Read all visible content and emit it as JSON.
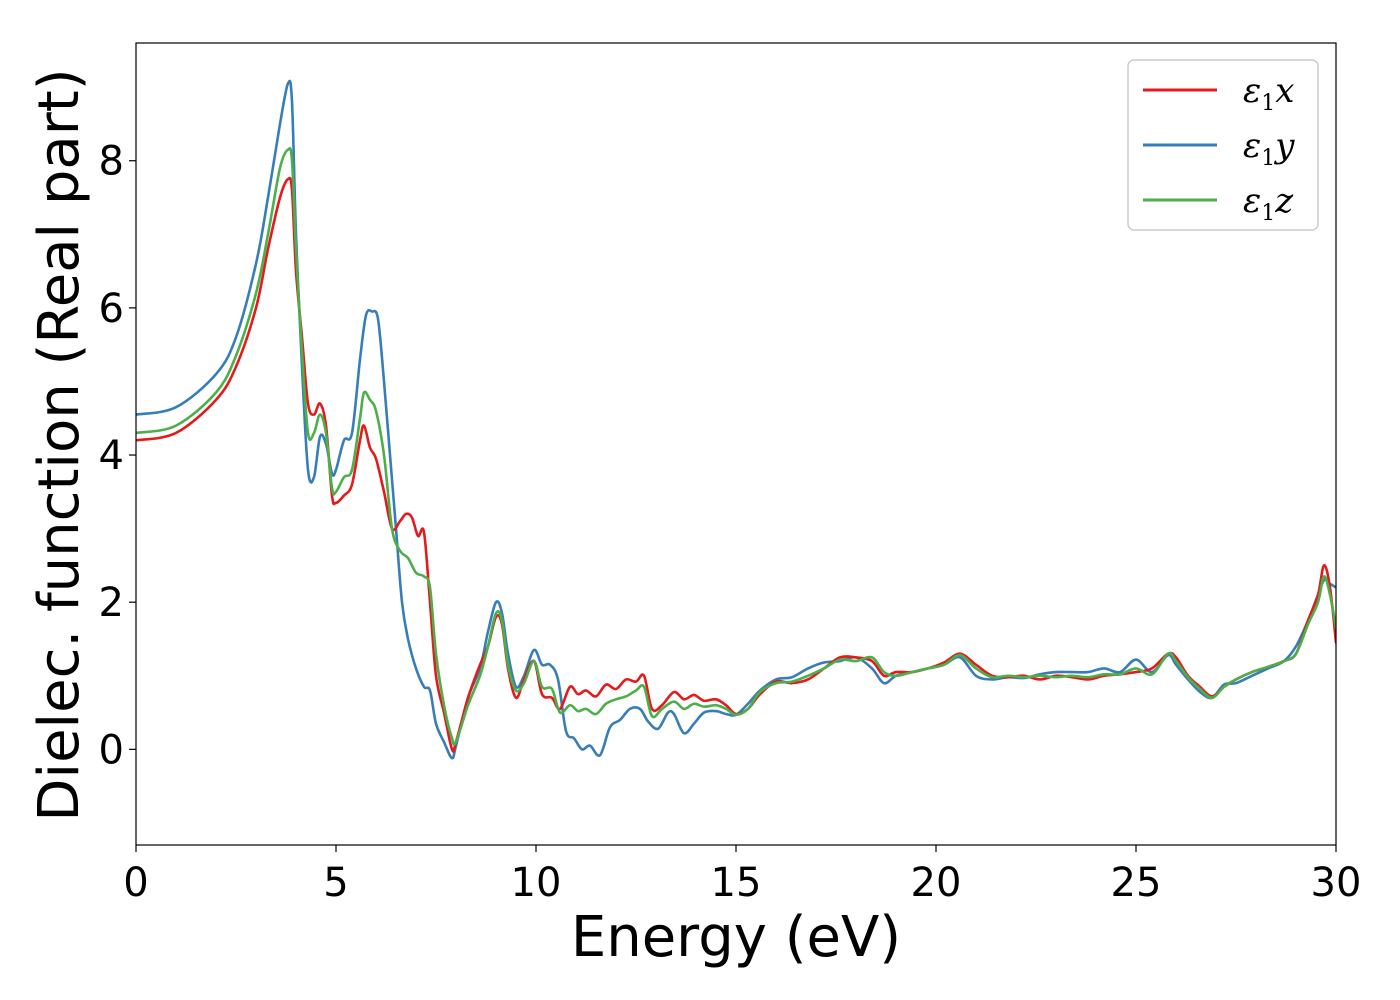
{
  "chart_data": {
    "type": "line",
    "title": "",
    "xlabel": "Energy (eV)",
    "ylabel": "Dielec. function (Real part)",
    "xlim": [
      0,
      30
    ],
    "ylim": [
      -1.3,
      9.6
    ],
    "xticks": [
      0,
      5,
      10,
      15,
      20,
      25,
      30
    ],
    "yticks": [
      0,
      2,
      4,
      6,
      8
    ],
    "grid": false,
    "legend_position": "top-right",
    "series": [
      {
        "name": "ε1x",
        "legend_symbol": "ε",
        "legend_sub": "1",
        "legend_var": "x",
        "color": "#e41a1c",
        "x": [
          0,
          1,
          2,
          2.5,
          3,
          3.3,
          3.6,
          3.8,
          3.9,
          4.0,
          4.15,
          4.3,
          4.45,
          4.6,
          4.75,
          4.9,
          5.0,
          5.2,
          5.4,
          5.6,
          5.7,
          5.85,
          6.0,
          6.2,
          6.4,
          6.6,
          6.75,
          6.9,
          7.05,
          7.2,
          7.35,
          7.5,
          7.7,
          7.9,
          8.0,
          8.3,
          8.6,
          8.8,
          9.0,
          9.15,
          9.3,
          9.5,
          9.7,
          9.95,
          10.15,
          10.4,
          10.6,
          10.85,
          11.05,
          11.25,
          11.5,
          11.75,
          12.0,
          12.25,
          12.5,
          12.7,
          12.9,
          13.15,
          13.45,
          13.7,
          13.95,
          14.2,
          14.5,
          14.75,
          15.0,
          15.3,
          15.6,
          16.0,
          16.4,
          16.8,
          17.2,
          17.6,
          18.0,
          18.4,
          18.7,
          19.0,
          19.4,
          19.8,
          20.2,
          20.6,
          21.0,
          21.4,
          21.8,
          22.2,
          22.6,
          23.0,
          23.4,
          23.8,
          24.2,
          24.6,
          25.0,
          25.4,
          25.8,
          26.0,
          26.3,
          26.6,
          26.9,
          27.2,
          27.5,
          27.9,
          28.3,
          28.7,
          29.0,
          29.3,
          29.55,
          29.7,
          29.85,
          30.0
        ],
        "values": [
          4.2,
          4.3,
          4.75,
          5.2,
          6.0,
          6.8,
          7.5,
          7.75,
          7.6,
          6.5,
          5.6,
          4.7,
          4.55,
          4.7,
          4.4,
          3.45,
          3.35,
          3.45,
          3.6,
          4.2,
          4.4,
          4.1,
          3.95,
          3.5,
          3.0,
          3.1,
          3.2,
          3.15,
          2.9,
          2.95,
          2.0,
          1.0,
          0.5,
          0.0,
          0.1,
          0.7,
          1.15,
          1.4,
          1.8,
          1.7,
          1.1,
          0.7,
          0.95,
          1.2,
          0.75,
          0.7,
          0.55,
          0.85,
          0.75,
          0.8,
          0.72,
          0.88,
          0.82,
          0.95,
          0.92,
          1.0,
          0.55,
          0.6,
          0.78,
          0.68,
          0.74,
          0.66,
          0.68,
          0.6,
          0.48,
          0.55,
          0.75,
          0.92,
          0.9,
          0.95,
          1.1,
          1.25,
          1.25,
          1.2,
          1.0,
          1.05,
          1.05,
          1.1,
          1.18,
          1.3,
          1.15,
          1.0,
          0.98,
          1.0,
          0.95,
          1.0,
          0.98,
          0.95,
          1.0,
          1.02,
          1.05,
          1.1,
          1.3,
          1.25,
          1.0,
          0.85,
          0.72,
          0.85,
          0.95,
          1.05,
          1.12,
          1.2,
          1.3,
          1.75,
          2.1,
          2.5,
          2.2,
          1.45
        ]
      },
      {
        "name": "ε1y",
        "legend_symbol": "ε",
        "legend_sub": "1",
        "legend_var": "y",
        "color": "#377eb8",
        "x": [
          0,
          1,
          2,
          2.5,
          3,
          3.3,
          3.6,
          3.8,
          3.9,
          4.0,
          4.15,
          4.3,
          4.45,
          4.6,
          4.75,
          4.9,
          5.0,
          5.2,
          5.4,
          5.6,
          5.75,
          5.9,
          6.05,
          6.2,
          6.35,
          6.5,
          6.65,
          6.8,
          7.0,
          7.2,
          7.35,
          7.5,
          7.7,
          7.9,
          8.0,
          8.3,
          8.6,
          8.8,
          9.0,
          9.15,
          9.3,
          9.5,
          9.7,
          9.95,
          10.15,
          10.35,
          10.55,
          10.75,
          10.95,
          11.15,
          11.35,
          11.6,
          11.85,
          12.1,
          12.35,
          12.6,
          12.8,
          13.05,
          13.3,
          13.45,
          13.7,
          13.95,
          14.2,
          14.5,
          14.75,
          15.0,
          15.3,
          15.6,
          16.0,
          16.4,
          16.8,
          17.2,
          17.6,
          18.0,
          18.4,
          18.7,
          19.0,
          19.4,
          19.8,
          20.2,
          20.6,
          21.0,
          21.4,
          21.8,
          22.2,
          22.6,
          23.0,
          23.4,
          23.8,
          24.2,
          24.6,
          25.0,
          25.4,
          25.8,
          26.0,
          26.3,
          26.6,
          26.9,
          27.2,
          27.5,
          27.9,
          28.3,
          28.7,
          29.0,
          29.3,
          29.55,
          29.7,
          29.85,
          30.0
        ],
        "values": [
          4.55,
          4.65,
          5.1,
          5.6,
          6.6,
          7.5,
          8.5,
          9.05,
          8.8,
          7.0,
          5.2,
          3.8,
          3.7,
          4.25,
          4.15,
          3.75,
          3.8,
          4.2,
          4.3,
          5.3,
          5.9,
          5.95,
          5.85,
          5.0,
          4.0,
          3.0,
          2.0,
          1.5,
          1.1,
          0.85,
          0.8,
          0.35,
          0.1,
          -0.12,
          0.05,
          0.7,
          1.1,
          1.6,
          2.0,
          1.85,
          1.3,
          0.85,
          1.0,
          1.35,
          1.15,
          1.15,
          0.95,
          0.25,
          0.15,
          0.0,
          0.05,
          -0.08,
          0.3,
          0.4,
          0.55,
          0.55,
          0.38,
          0.28,
          0.5,
          0.48,
          0.22,
          0.35,
          0.5,
          0.52,
          0.48,
          0.47,
          0.62,
          0.8,
          0.95,
          0.98,
          1.1,
          1.18,
          1.2,
          1.25,
          1.1,
          0.9,
          1.0,
          1.05,
          1.1,
          1.15,
          1.25,
          1.0,
          0.95,
          0.98,
          0.97,
          1.02,
          1.05,
          1.05,
          1.05,
          1.1,
          1.05,
          1.22,
          1.05,
          1.28,
          1.15,
          0.95,
          0.78,
          0.7,
          0.88,
          0.9,
          1.0,
          1.1,
          1.2,
          1.4,
          1.75,
          2.1,
          2.3,
          2.25,
          2.2
        ]
      },
      {
        "name": "ε1z",
        "legend_symbol": "ε",
        "legend_sub": "1",
        "legend_var": "z",
        "color": "#4daf4a",
        "x": [
          0,
          1,
          2,
          2.5,
          3,
          3.3,
          3.6,
          3.8,
          3.9,
          4.0,
          4.15,
          4.3,
          4.45,
          4.6,
          4.75,
          4.9,
          5.0,
          5.2,
          5.4,
          5.6,
          5.7,
          5.85,
          6.0,
          6.2,
          6.4,
          6.6,
          6.8,
          7.0,
          7.2,
          7.35,
          7.5,
          7.7,
          7.9,
          8.0,
          8.3,
          8.6,
          8.8,
          9.0,
          9.15,
          9.3,
          9.5,
          9.7,
          9.95,
          10.15,
          10.4,
          10.6,
          10.85,
          11.05,
          11.25,
          11.5,
          11.75,
          12.0,
          12.25,
          12.5,
          12.7,
          12.9,
          13.15,
          13.45,
          13.7,
          13.95,
          14.2,
          14.5,
          14.75,
          15.0,
          15.3,
          15.6,
          16.0,
          16.4,
          16.8,
          17.2,
          17.6,
          18.0,
          18.4,
          18.7,
          19.0,
          19.4,
          19.8,
          20.2,
          20.6,
          21.0,
          21.4,
          21.8,
          22.2,
          22.6,
          23.0,
          23.4,
          23.8,
          24.2,
          24.6,
          25.0,
          25.4,
          25.8,
          26.0,
          26.3,
          26.6,
          26.9,
          27.2,
          27.5,
          27.9,
          28.3,
          28.7,
          29.0,
          29.3,
          29.55,
          29.7,
          29.85,
          30.0
        ],
        "values": [
          4.3,
          4.4,
          4.85,
          5.35,
          6.2,
          7.0,
          7.9,
          8.15,
          8.0,
          6.8,
          5.4,
          4.3,
          4.3,
          4.55,
          4.3,
          3.55,
          3.5,
          3.7,
          3.8,
          4.5,
          4.85,
          4.75,
          4.6,
          4.0,
          3.0,
          2.7,
          2.6,
          2.4,
          2.35,
          2.2,
          1.3,
          0.6,
          0.15,
          0.1,
          0.6,
          1.0,
          1.4,
          1.85,
          1.75,
          1.15,
          0.8,
          0.9,
          1.2,
          0.85,
          0.82,
          0.5,
          0.6,
          0.52,
          0.55,
          0.48,
          0.62,
          0.68,
          0.72,
          0.8,
          0.85,
          0.45,
          0.55,
          0.65,
          0.55,
          0.62,
          0.58,
          0.6,
          0.55,
          0.47,
          0.55,
          0.78,
          0.9,
          0.92,
          1.0,
          1.1,
          1.22,
          1.2,
          1.25,
          1.05,
          1.0,
          1.05,
          1.1,
          1.15,
          1.28,
          1.1,
          0.98,
          1.0,
          0.98,
          1.0,
          0.98,
          1.0,
          0.98,
          1.02,
          1.02,
          1.1,
          1.02,
          1.3,
          1.2,
          0.98,
          0.82,
          0.7,
          0.85,
          0.95,
          1.05,
          1.12,
          1.2,
          1.3,
          1.7,
          2.0,
          2.35,
          2.1,
          1.65
        ]
      }
    ]
  }
}
